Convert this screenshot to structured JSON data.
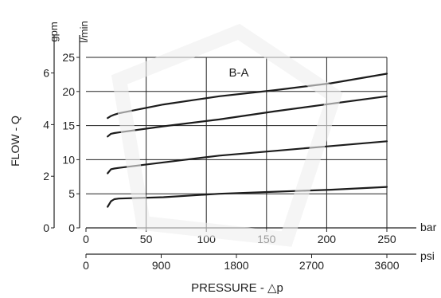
{
  "chart_data": {
    "type": "line",
    "annotation": "B-A",
    "ylabel": "FLOW - Q",
    "xlabel": "PRESSURE - △p",
    "x_unit_primary": "bar",
    "x_unit_secondary": "psi",
    "y_unit_left": "gpm",
    "y_unit_right": "l/min",
    "xlim": [
      0,
      250
    ],
    "ylim": [
      0,
      25
    ],
    "x_ticks": [
      0,
      50,
      100,
      150,
      200,
      250
    ],
    "x_tick_labels": [
      "0",
      "50",
      "100",
      "150",
      "200",
      "250"
    ],
    "psi_ticks": [
      0,
      900,
      1800,
      2700,
      3600
    ],
    "psi_tick_labels": [
      "0",
      "900",
      "1800",
      "2700",
      "3600"
    ],
    "y_ticks": [
      0,
      5,
      10,
      15,
      20,
      25
    ],
    "y_tick_labels": [
      "0",
      "5",
      "10",
      "15",
      "20",
      "25"
    ],
    "gpm_ticks": [
      0,
      2,
      4,
      6
    ],
    "gpm_tick_labels": [
      "0",
      "2",
      "4",
      "6"
    ],
    "grid": true,
    "series": [
      {
        "x": [
          0,
          3,
          6,
          10,
          50,
          100,
          150,
          200,
          250
        ],
        "y": [
          3.1,
          3.9,
          4.2,
          4.3,
          4.5,
          5.0,
          5.3,
          5.6,
          6.0
        ]
      },
      {
        "x": [
          0,
          3,
          6,
          10,
          50,
          100,
          150,
          200,
          250
        ],
        "y": [
          8.0,
          8.6,
          8.7,
          8.8,
          9.6,
          10.6,
          11.3,
          12.0,
          12.7
        ]
      },
      {
        "x": [
          0,
          3,
          6,
          10,
          50,
          100,
          150,
          200,
          250
        ],
        "y": [
          13.4,
          13.8,
          13.9,
          14.0,
          14.9,
          15.9,
          17.1,
          18.2,
          19.3
        ]
      },
      {
        "x": [
          0,
          3,
          6,
          10,
          50,
          100,
          150,
          200,
          250
        ],
        "y": [
          16.1,
          16.4,
          16.6,
          16.8,
          18.1,
          19.3,
          20.2,
          21.2,
          22.6
        ]
      }
    ]
  }
}
